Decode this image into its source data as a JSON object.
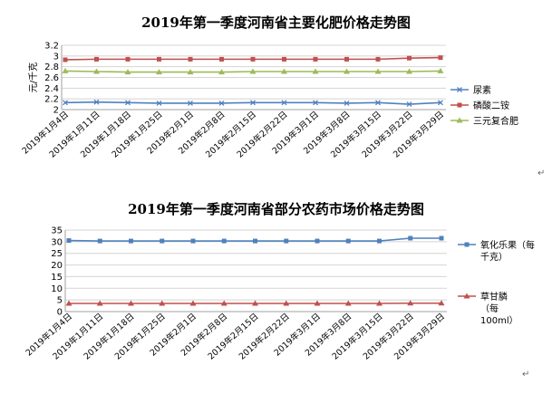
{
  "chart_data": [
    {
      "type": "line",
      "title": "2019年第一季度河南省主要化肥价格走势图",
      "ylabel": "元/千克",
      "xlabel": "",
      "ylim": [
        2,
        3.2
      ],
      "yticks": [
        "2",
        "2.2",
        "2.4",
        "2.6",
        "2.8",
        "3",
        "3.2"
      ],
      "categories": [
        "2019年1月4日",
        "2019年1月11日",
        "2019年1月18日",
        "2019年1月25日",
        "2019年2月1日",
        "2019年2月8日",
        "2019年2月15日",
        "2019年2月22日",
        "2019年3月1日",
        "2019年3月8日",
        "2019年3月15日",
        "2019年3月22日",
        "2019年3月29日"
      ],
      "grid": true,
      "legend": "right",
      "series": [
        {
          "name": "尿素",
          "color": "#4f81bd",
          "marker": "x",
          "values": [
            2.13,
            2.14,
            2.13,
            2.12,
            2.12,
            2.12,
            2.13,
            2.13,
            2.13,
            2.12,
            2.13,
            2.1,
            2.13
          ]
        },
        {
          "name": "磷酸二铵",
          "color": "#c0504d",
          "marker": "square",
          "values": [
            2.93,
            2.94,
            2.94,
            2.94,
            2.94,
            2.94,
            2.94,
            2.94,
            2.94,
            2.94,
            2.94,
            2.96,
            2.97
          ]
        },
        {
          "name": "三元复合肥",
          "color": "#9bbb59",
          "marker": "triangle",
          "values": [
            2.72,
            2.71,
            2.7,
            2.7,
            2.7,
            2.7,
            2.71,
            2.71,
            2.71,
            2.71,
            2.71,
            2.71,
            2.72
          ]
        }
      ]
    },
    {
      "type": "line",
      "title": "2019年第一季度河南省部分农药市场价格走势图",
      "ylabel": "",
      "xlabel": "",
      "ylim": [
        0,
        35
      ],
      "yticks": [
        "0",
        "5",
        "10",
        "15",
        "20",
        "25",
        "30",
        "35"
      ],
      "categories": [
        "2019年1月4日",
        "2019年1月11日",
        "2019年1月18日",
        "2019年1月25日",
        "2019年2月1日",
        "2019年2月8日",
        "2019年2月15日",
        "2019年2月22日",
        "2019年3月1日",
        "2019年3月8日",
        "2019年3月15日",
        "2019年3月22日",
        "2019年3月29日"
      ],
      "grid": true,
      "legend": "right",
      "series": [
        {
          "name": "氧化乐果（每千克）",
          "color": "#4f81bd",
          "marker": "square",
          "values": [
            30.5,
            30.3,
            30.3,
            30.3,
            30.3,
            30.3,
            30.3,
            30.3,
            30.3,
            30.3,
            30.3,
            31.5,
            31.5
          ]
        },
        {
          "name": "草甘膦（每100ml）",
          "color": "#c0504d",
          "marker": "triangle",
          "values": [
            3.5,
            3.5,
            3.5,
            3.5,
            3.5,
            3.5,
            3.5,
            3.5,
            3.5,
            3.5,
            3.5,
            3.6,
            3.6
          ]
        }
      ]
    }
  ],
  "legend_lines": [
    [
      [
        "尿素"
      ],
      [
        "磷酸二铵"
      ],
      [
        "三元复合肥"
      ]
    ],
    [
      [
        "氧化乐果（每",
        "千克）"
      ],
      [
        "草甘膦",
        "（每",
        "100ml）"
      ]
    ]
  ],
  "para_mark": "↵"
}
